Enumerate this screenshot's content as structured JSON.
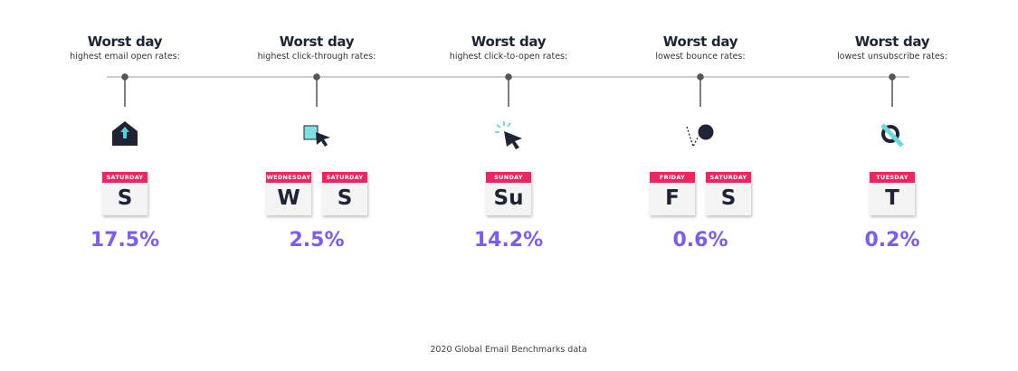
{
  "columns": [
    {
      "title": "Worst day",
      "subtitle": "highest email open rates:",
      "days": [
        {
          "name": "SATURDAY",
          "letter": "S"
        }
      ],
      "rate": "17.5%"
    },
    {
      "title": "Worst day",
      "subtitle": "highest click-through rates:",
      "days": [
        {
          "name": "WEDNESDAY",
          "letter": "W"
        },
        {
          "name": "SATURDAY",
          "letter": "S"
        }
      ],
      "rate": "2.5%"
    },
    {
      "title": "Worst day",
      "subtitle": "highest click-to-open rates:",
      "days": [
        {
          "name": "SUNDAY",
          "letter": "Su"
        }
      ],
      "rate": "14.2%"
    },
    {
      "title": "Worst day",
      "subtitle": "lowest bounce rates:",
      "days": [
        {
          "name": "FRIDAY",
          "letter": "F"
        },
        {
          "name": "SATURDAY",
          "letter": "S"
        }
      ],
      "rate": "0.6%"
    },
    {
      "title": "Worst day",
      "subtitle": "lowest unsubscribe rates:",
      "days": [
        {
          "name": "TUESDAY",
          "letter": "T"
        }
      ],
      "rate": "0.2%"
    }
  ],
  "footer": "2020 Global Email Benchmarks data"
}
